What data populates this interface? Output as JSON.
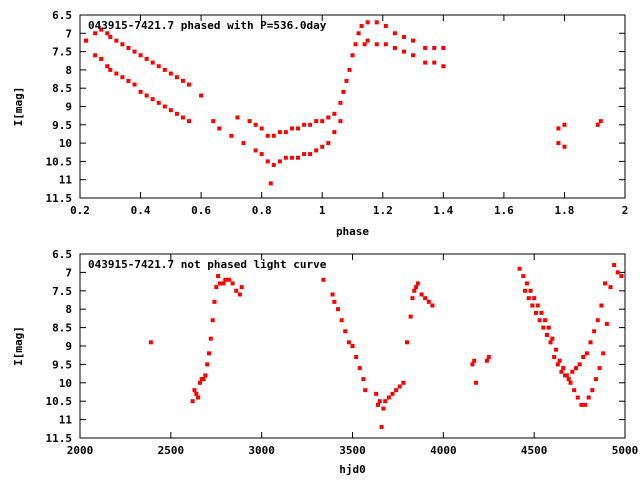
{
  "chart_data": [
    {
      "type": "scatter",
      "title": "043915-7421.7 phased with P=536.0day",
      "xlabel": "phase",
      "ylabel": "I[mag]",
      "xlim": [
        0.2,
        2
      ],
      "ylim": [
        6.5,
        11.5
      ],
      "y_inverted": true,
      "xticks": [
        "0.2",
        "0.4",
        "0.6",
        "0.8",
        "1",
        "1.2",
        "1.4",
        "1.6",
        "1.8",
        "2"
      ],
      "yticks": [
        "6.5",
        "7",
        "7.5",
        "8",
        "8.5",
        "9",
        "9.5",
        "10",
        "10.5",
        "11",
        "11.5"
      ],
      "grid": false,
      "color": "#ff0000",
      "x": [
        0.22,
        0.22,
        0.25,
        0.25,
        0.27,
        0.27,
        0.29,
        0.29,
        0.3,
        0.3,
        0.32,
        0.32,
        0.34,
        0.34,
        0.36,
        0.36,
        0.38,
        0.38,
        0.4,
        0.4,
        0.42,
        0.42,
        0.44,
        0.44,
        0.46,
        0.46,
        0.48,
        0.48,
        0.5,
        0.5,
        0.52,
        0.52,
        0.54,
        0.54,
        0.56,
        0.56,
        0.6,
        0.64,
        0.66,
        0.7,
        0.72,
        0.74,
        0.76,
        0.78,
        0.78,
        0.8,
        0.8,
        0.82,
        0.82,
        0.83,
        0.84,
        0.84,
        0.86,
        0.86,
        0.88,
        0.88,
        0.9,
        0.9,
        0.92,
        0.92,
        0.94,
        0.94,
        0.96,
        0.96,
        0.98,
        0.98,
        1.0,
        1.0,
        1.02,
        1.02,
        1.04,
        1.04,
        1.06,
        1.06,
        1.07,
        1.08,
        1.09,
        1.1,
        1.11,
        1.12,
        1.13,
        1.14,
        1.15,
        1.15,
        1.18,
        1.18,
        1.21,
        1.21,
        1.24,
        1.24,
        1.27,
        1.27,
        1.3,
        1.3,
        1.34,
        1.34,
        1.37,
        1.37,
        1.4,
        1.4,
        1.78,
        1.78,
        1.8,
        1.8,
        1.91,
        1.92
      ],
      "y": [
        7.2,
        7.2,
        7.0,
        7.6,
        6.9,
        7.7,
        7.0,
        7.9,
        7.1,
        8.0,
        7.2,
        8.1,
        7.3,
        8.2,
        7.4,
        8.3,
        7.5,
        8.4,
        7.6,
        8.6,
        7.7,
        8.7,
        7.8,
        8.8,
        7.9,
        8.9,
        8.0,
        9.0,
        8.1,
        9.1,
        8.2,
        9.2,
        8.3,
        9.3,
        8.4,
        9.4,
        8.7,
        9.4,
        9.6,
        9.8,
        9.3,
        10.0,
        9.4,
        10.2,
        9.5,
        10.3,
        9.6,
        10.5,
        9.8,
        11.1,
        9.8,
        10.6,
        9.7,
        10.5,
        9.7,
        10.4,
        9.6,
        10.4,
        9.6,
        10.4,
        9.5,
        10.3,
        9.5,
        10.3,
        9.4,
        10.2,
        9.4,
        10.1,
        9.3,
        10.0,
        9.2,
        9.7,
        8.9,
        9.4,
        8.6,
        8.3,
        8.0,
        7.6,
        7.3,
        7.0,
        6.8,
        7.3,
        6.7,
        7.2,
        6.7,
        7.3,
        6.8,
        7.3,
        7.0,
        7.4,
        7.1,
        7.5,
        7.2,
        7.6,
        7.4,
        7.8,
        7.4,
        7.8,
        7.4,
        7.9,
        9.6,
        10.0,
        9.5,
        10.1,
        9.5,
        9.4
      ]
    },
    {
      "type": "scatter",
      "title": "043915-7421.7 not phased light curve",
      "xlabel": "hjd0",
      "ylabel": "I[mag]",
      "xlim": [
        2000,
        5000
      ],
      "ylim": [
        6.5,
        11.5
      ],
      "y_inverted": true,
      "xticks": [
        "2000",
        "2500",
        "3000",
        "3500",
        "4000",
        "4500",
        "5000"
      ],
      "yticks": [
        "6.5",
        "7",
        "7.5",
        "8",
        "8.5",
        "9",
        "9.5",
        "10",
        "10.5",
        "11",
        "11.5"
      ],
      "grid": false,
      "color": "#ff0000",
      "x": [
        2390,
        2620,
        2630,
        2640,
        2650,
        2660,
        2670,
        2680,
        2690,
        2700,
        2710,
        2720,
        2730,
        2740,
        2750,
        2760,
        2770,
        2790,
        2800,
        2820,
        2840,
        2860,
        2880,
        2890,
        3340,
        3390,
        3400,
        3420,
        3440,
        3460,
        3480,
        3500,
        3520,
        3540,
        3560,
        3570,
        3630,
        3640,
        3650,
        3660,
        3670,
        3680,
        3700,
        3720,
        3740,
        3760,
        3780,
        3800,
        3820,
        3830,
        3840,
        3850,
        3860,
        3880,
        3900,
        3920,
        3940,
        4160,
        4170,
        4180,
        4240,
        4250,
        4420,
        4440,
        4460,
        4480,
        4500,
        4520,
        4540,
        4560,
        4580,
        4600,
        4620,
        4640,
        4660,
        4680,
        4700,
        4720,
        4740,
        4760,
        4780,
        4800,
        4820,
        4840,
        4860,
        4880,
        4900,
        4920,
        4940,
        4960,
        4980,
        4450,
        4470,
        4490,
        4510,
        4530,
        4550,
        4570,
        4590,
        4610,
        4630,
        4650,
        4670,
        4690,
        4710,
        4730,
        4750,
        4770,
        4790,
        4810,
        4830,
        4850,
        4870,
        4890
      ],
      "y": [
        8.9,
        10.5,
        10.2,
        10.3,
        10.4,
        10.0,
        9.9,
        9.9,
        9.8,
        9.5,
        9.2,
        8.8,
        8.3,
        7.8,
        7.4,
        7.1,
        7.3,
        7.3,
        7.2,
        7.2,
        7.3,
        7.5,
        7.6,
        7.4,
        7.2,
        7.6,
        7.8,
        8.0,
        8.3,
        8.6,
        8.9,
        9.0,
        9.3,
        9.6,
        9.9,
        10.2,
        10.3,
        10.6,
        10.5,
        11.2,
        10.7,
        10.5,
        10.4,
        10.3,
        10.2,
        10.1,
        10.0,
        8.9,
        8.2,
        7.7,
        7.5,
        7.4,
        7.3,
        7.6,
        7.7,
        7.8,
        7.9,
        9.5,
        9.4,
        10.0,
        9.4,
        9.3,
        6.9,
        7.1,
        7.3,
        7.5,
        7.7,
        7.9,
        8.1,
        8.3,
        8.5,
        8.8,
        9.1,
        9.4,
        9.6,
        9.8,
        10.0,
        10.2,
        10.4,
        10.6,
        10.6,
        10.4,
        10.2,
        9.9,
        9.6,
        9.2,
        8.4,
        7.4,
        6.8,
        7.0,
        7.1,
        7.5,
        7.7,
        7.9,
        8.1,
        8.3,
        8.5,
        8.7,
        8.9,
        9.3,
        9.5,
        9.7,
        9.8,
        9.9,
        9.7,
        9.6,
        9.5,
        9.3,
        9.2,
        8.9,
        8.6,
        8.3,
        7.9,
        7.3
      ]
    }
  ]
}
